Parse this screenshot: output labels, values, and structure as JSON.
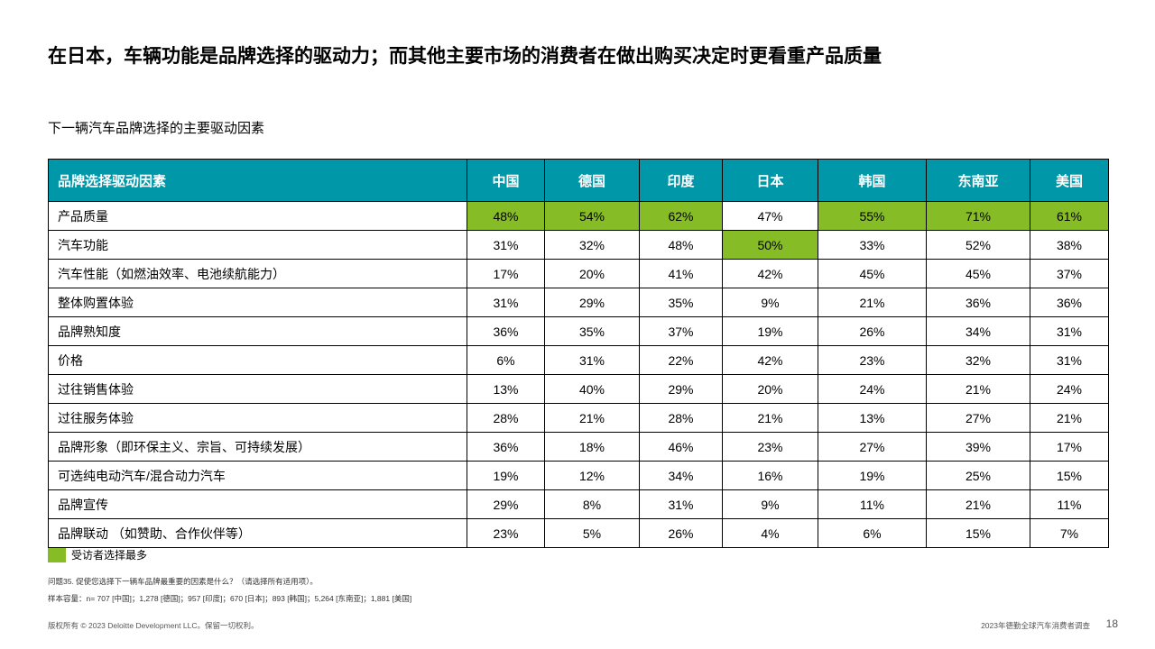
{
  "title": "在日本，车辆功能是品牌选择的驱动力；而其他主要市场的消费者在做出购买决定时更看重产品质量",
  "subtitle": "下一辆汽车品牌选择的主要驱动因素",
  "table": {
    "row_header": "品牌选择驱动因素",
    "columns": [
      "中国",
      "德国",
      "印度",
      "日本",
      "韩国",
      "东南亚",
      "美国"
    ],
    "rows": [
      {
        "label": "产品质量",
        "values": [
          "48%",
          "54%",
          "62%",
          "47%",
          "55%",
          "71%",
          "61%"
        ],
        "highlight": [
          0,
          1,
          2,
          4,
          5,
          6
        ]
      },
      {
        "label": "汽车功能",
        "values": [
          "31%",
          "32%",
          "48%",
          "50%",
          "33%",
          "52%",
          "38%"
        ],
        "highlight": [
          3
        ]
      },
      {
        "label": "汽车性能（如燃油效率、电池续航能力）",
        "values": [
          "17%",
          "20%",
          "41%",
          "42%",
          "45%",
          "45%",
          "37%"
        ],
        "highlight": []
      },
      {
        "label": "整体购置体验",
        "values": [
          "31%",
          "29%",
          "35%",
          "9%",
          "21%",
          "36%",
          "36%"
        ],
        "highlight": []
      },
      {
        "label": "品牌熟知度",
        "values": [
          "36%",
          "35%",
          "37%",
          "19%",
          "26%",
          "34%",
          "31%"
        ],
        "highlight": []
      },
      {
        "label": "价格",
        "values": [
          "6%",
          "31%",
          "22%",
          "42%",
          "23%",
          "32%",
          "31%"
        ],
        "highlight": []
      },
      {
        "label": "过往销售体验",
        "values": [
          "13%",
          "40%",
          "29%",
          "20%",
          "24%",
          "21%",
          "24%"
        ],
        "highlight": []
      },
      {
        "label": "过往服务体验",
        "values": [
          "28%",
          "21%",
          "28%",
          "21%",
          "13%",
          "27%",
          "21%"
        ],
        "highlight": []
      },
      {
        "label": "品牌形象（即环保主义、宗旨、可持续发展）",
        "values": [
          "36%",
          "18%",
          "46%",
          "23%",
          "27%",
          "39%",
          "17%"
        ],
        "highlight": []
      },
      {
        "label": "可选纯电动汽车/混合动力汽车",
        "values": [
          "19%",
          "12%",
          "34%",
          "16%",
          "19%",
          "25%",
          "15%"
        ],
        "highlight": []
      },
      {
        "label": "品牌宣传",
        "values": [
          "29%",
          "8%",
          "31%",
          "9%",
          "11%",
          "21%",
          "11%"
        ],
        "highlight": []
      },
      {
        "label": "品牌联动 （如赞助、合作伙伴等）",
        "values": [
          "23%",
          "5%",
          "26%",
          "4%",
          "6%",
          "15%",
          "7%"
        ],
        "highlight": []
      }
    ]
  },
  "legend": {
    "label": "受访者选择最多",
    "color": "#86bc25"
  },
  "notes": {
    "question": "问题35. 促使您选择下一辆车品牌最重要的因素是什么？（请选择所有适用项）。",
    "sample": "样本容量：n= 707 [中国]；1,278 [德国]；957 [印度]；670 [日本]；893 [韩国]；5,264 [东南亚]；1,881 [美国]"
  },
  "footer": {
    "copyright": "版权所有 © 2023 Deloitte Development LLC。保留一切权利。",
    "report": "2023年德勤全球汽车消费者调查",
    "page": "18"
  },
  "colors": {
    "header_bg": "#0097a9",
    "highlight": "#86bc25"
  }
}
